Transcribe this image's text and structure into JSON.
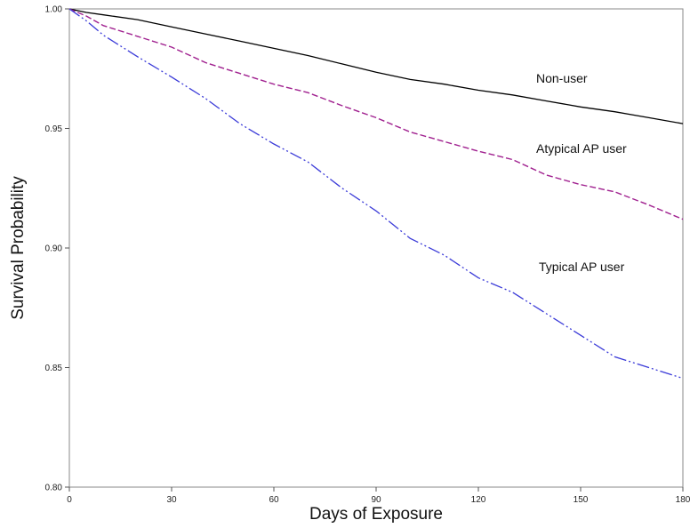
{
  "chart_data": {
    "type": "line",
    "title": "",
    "xlabel": "Days of Exposure",
    "ylabel": "Survival Probability",
    "xlim": [
      0,
      180
    ],
    "ylim": [
      0.8,
      1.0
    ],
    "x_ticks": [
      0,
      30,
      60,
      90,
      120,
      150,
      180
    ],
    "x_tick_labels": [
      "0",
      "30",
      "60",
      "90",
      "120",
      "150",
      "180"
    ],
    "y_ticks": [
      0.8,
      0.85,
      0.9,
      0.95,
      1.0
    ],
    "y_tick_labels": [
      "0.80",
      "0.85",
      "0.90",
      "0.95",
      "1.00"
    ],
    "grid": false,
    "legend": "none",
    "series": [
      {
        "name": "Non-user",
        "color": "#000000",
        "line_style": "solid",
        "x": [
          0,
          5,
          10,
          20,
          30,
          40,
          50,
          60,
          70,
          80,
          90,
          100,
          110,
          120,
          130,
          140,
          150,
          160,
          170,
          180
        ],
        "y": [
          1.0,
          0.9985,
          0.9975,
          0.9955,
          0.9925,
          0.9895,
          0.9865,
          0.9835,
          0.9805,
          0.977,
          0.9735,
          0.9705,
          0.9685,
          0.966,
          0.964,
          0.9615,
          0.959,
          0.957,
          0.9545,
          0.952
        ]
      },
      {
        "name": "Atypical AP user",
        "color": "#a0208f",
        "line_style": "dashed",
        "x": [
          0,
          5,
          10,
          20,
          30,
          40,
          50,
          60,
          70,
          80,
          90,
          100,
          110,
          120,
          130,
          140,
          150,
          160,
          170,
          180
        ],
        "y": [
          1.0,
          0.997,
          0.993,
          0.9885,
          0.984,
          0.9775,
          0.973,
          0.9685,
          0.965,
          0.9595,
          0.9545,
          0.9485,
          0.9445,
          0.9405,
          0.937,
          0.9305,
          0.9265,
          0.9235,
          0.918,
          0.912
        ]
      },
      {
        "name": "Typical AP user",
        "color": "#3a3ad8",
        "line_style": "dash-dot",
        "x": [
          0,
          5,
          10,
          20,
          30,
          40,
          50,
          60,
          70,
          80,
          90,
          100,
          110,
          120,
          130,
          140,
          150,
          160,
          170,
          180
        ],
        "y": [
          1.0,
          0.995,
          0.989,
          0.98,
          0.9715,
          0.9625,
          0.952,
          0.9435,
          0.936,
          0.925,
          0.9155,
          0.904,
          0.897,
          0.8875,
          0.8815,
          0.8725,
          0.8635,
          0.8545,
          0.85,
          0.8455
        ]
      }
    ]
  }
}
